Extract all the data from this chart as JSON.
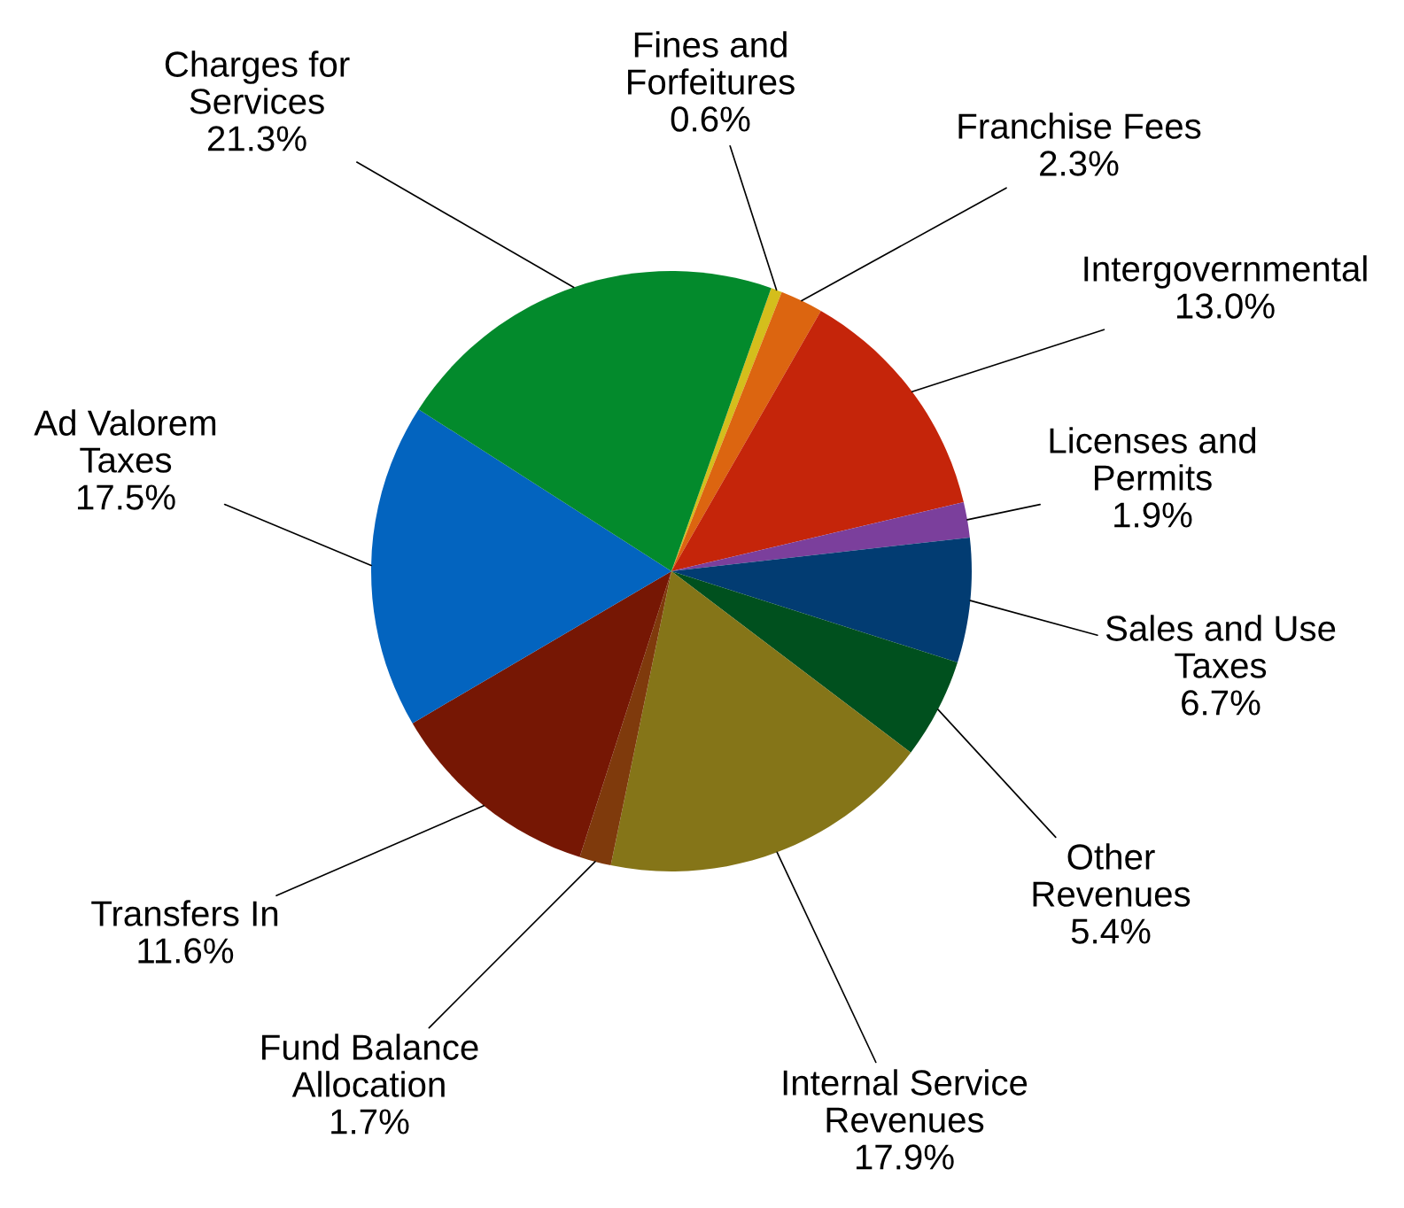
{
  "chart_data": {
    "type": "pie",
    "categories": [
      "Fines and\nForfeitures",
      "Franchise Fees",
      "Intergovernmental",
      "Licenses and\nPermits",
      "Sales and Use\nTaxes",
      "Other\nRevenues",
      "Internal Service\nRevenues",
      "Fund Balance\nAllocation",
      "Transfers In",
      "Ad Valorem\nTaxes",
      "Charges for\nServices"
    ],
    "values": [
      0.6,
      2.3,
      13.0,
      1.9,
      6.7,
      5.4,
      17.9,
      1.7,
      11.6,
      17.5,
      21.3
    ],
    "colors": [
      "#d4be1c",
      "#dc6510",
      "#c5250a",
      "#7b3f9c",
      "#023c72",
      "#00501e",
      "#857518",
      "#7f3a0c",
      "#761704",
      "#0364bf",
      "#038a2c"
    ],
    "value_labels": [
      "0.6%",
      "2.3%",
      "13.0%",
      "1.9%",
      "6.7%",
      "5.4%",
      "17.9%",
      "1.7%",
      "11.6%",
      "17.5%",
      "21.3%"
    ]
  }
}
